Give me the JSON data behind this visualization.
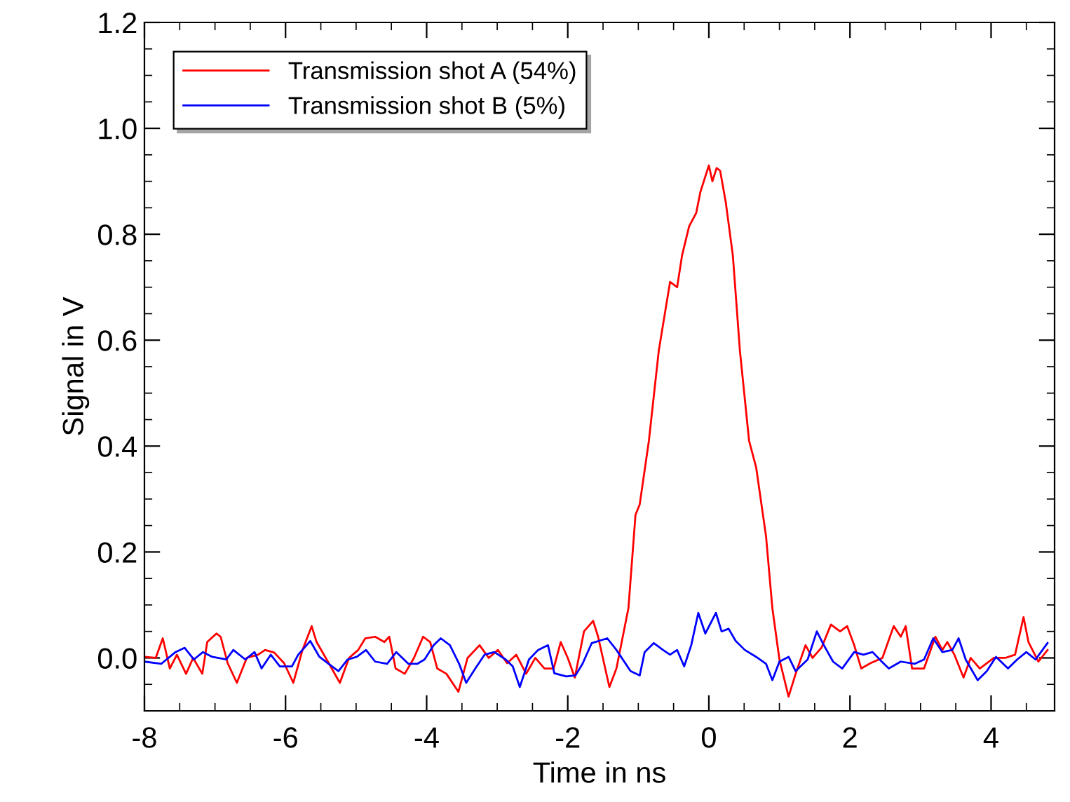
{
  "chart_data": {
    "type": "line",
    "xlabel": "Time in ns",
    "ylabel": "Signal in V",
    "xlim": [
      -8,
      4.9
    ],
    "ylim": [
      -0.1,
      1.2
    ],
    "xticks": [
      -8,
      {
        "value": -7.5,
        "label": null
      },
      {
        "value": -7,
        "label": null
      },
      {
        "value": -6.5,
        "label": null
      },
      -6,
      {
        "value": -5.5,
        "label": null
      },
      {
        "value": -5,
        "label": null
      },
      {
        "value": -4.5,
        "label": null
      },
      -4,
      {
        "value": -3.5,
        "label": null
      },
      {
        "value": -3,
        "label": null
      },
      {
        "value": -2.5,
        "label": null
      },
      -2,
      {
        "value": -1.5,
        "label": null
      },
      {
        "value": -1,
        "label": null
      },
      {
        "value": -0.5,
        "label": null
      },
      0,
      {
        "value": 0.5,
        "label": null
      },
      {
        "value": 1,
        "label": null
      },
      {
        "value": 1.5,
        "label": null
      },
      2,
      {
        "value": 2.5,
        "label": null
      },
      {
        "value": 3,
        "label": null
      },
      {
        "value": 3.5,
        "label": null
      },
      4,
      {
        "value": 4.5,
        "label": null
      }
    ],
    "yticks": [
      {
        "value": -0.05,
        "label": null
      },
      {
        "value": 0,
        "label": "0.0"
      },
      {
        "value": 0.05,
        "label": null
      },
      {
        "value": 0.1,
        "label": null
      },
      {
        "value": 0.15,
        "label": null
      },
      0.2,
      {
        "value": 0.25,
        "label": null
      },
      {
        "value": 0.3,
        "label": null
      },
      {
        "value": 0.35,
        "label": null
      },
      0.4,
      {
        "value": 0.45,
        "label": null
      },
      {
        "value": 0.5,
        "label": null
      },
      {
        "value": 0.55,
        "label": null
      },
      0.6,
      {
        "value": 0.65,
        "label": null
      },
      {
        "value": 0.7,
        "label": null
      },
      {
        "value": 0.75,
        "label": null
      },
      0.8,
      {
        "value": 0.85,
        "label": null
      },
      {
        "value": 0.9,
        "label": null
      },
      {
        "value": 0.95,
        "label": null
      },
      {
        "value": 1,
        "label": "1.0"
      },
      {
        "value": 1.05,
        "label": null
      },
      {
        "value": 1.1,
        "label": null
      },
      {
        "value": 1.15,
        "label": null
      },
      1.2
    ],
    "grid": false,
    "legend": "top left",
    "marker": "none",
    "line_style": "solid",
    "series": [
      {
        "name": "Transmission shot A (54%)",
        "color": "#ff0000",
        "x": [
          -8,
          -7.84,
          -7.74,
          -7.64,
          -7.54,
          -7.41,
          -7.31,
          -7.18,
          -7.11,
          -6.98,
          -6.92,
          -6.82,
          -6.69,
          -6.55,
          -6.39,
          -6.29,
          -6.16,
          -6.02,
          -5.89,
          -5.76,
          -5.63,
          -5.56,
          -5.43,
          -5.23,
          -5.1,
          -4.97,
          -4.87,
          -4.73,
          -4.6,
          -4.53,
          -4.44,
          -4.31,
          -4.18,
          -4.05,
          -3.95,
          -3.85,
          -3.72,
          -3.55,
          -3.42,
          -3.25,
          -3.12,
          -2.99,
          -2.86,
          -2.73,
          -2.59,
          -2.46,
          -2.33,
          -2.2,
          -2.1,
          -2.0,
          -1.9,
          -1.77,
          -1.64,
          -1.57,
          -1.41,
          -1.31,
          -1.14,
          -1.04,
          -0.98,
          -0.85,
          -0.71,
          -0.55,
          -0.45,
          -0.38,
          -0.28,
          -0.18,
          -0.12,
          0,
          0.05,
          0.11,
          0.16,
          0.24,
          0.34,
          0.44,
          0.57,
          0.67,
          0.81,
          0.9,
          1.0,
          1.13,
          1.23,
          1.37,
          1.47,
          1.6,
          1.73,
          1.86,
          1.96,
          2.06,
          2.16,
          2.29,
          2.46,
          2.62,
          2.72,
          2.79,
          2.88,
          3.05,
          3.21,
          3.31,
          3.38,
          3.48,
          3.61,
          3.71,
          3.84,
          4.04,
          4.2,
          4.34,
          4.46,
          4.53,
          4.67,
          4.8
        ],
        "values": [
          0.002,
          0,
          0.037,
          -0.02,
          0.006,
          -0.03,
          0,
          -0.03,
          0.03,
          0.046,
          0.04,
          -0.01,
          -0.047,
          0,
          0.006,
          0.015,
          0.01,
          -0.01,
          -0.047,
          0.015,
          0.06,
          0.03,
          0,
          -0.047,
          0,
          0.015,
          0.037,
          0.04,
          0.03,
          0.04,
          -0.02,
          -0.03,
          0,
          0.04,
          0.03,
          -0.02,
          -0.03,
          -0.064,
          0,
          0.024,
          0,
          0.015,
          -0.01,
          0.006,
          -0.03,
          0,
          -0.02,
          -0.02,
          0.03,
          0,
          -0.037,
          0.05,
          0.07,
          0.04,
          -0.055,
          -0.02,
          0.094,
          0.27,
          0.29,
          0.41,
          0.58,
          0.71,
          0.7,
          0.76,
          0.815,
          0.84,
          0.88,
          0.93,
          0.9,
          0.925,
          0.92,
          0.86,
          0.76,
          0.58,
          0.41,
          0.36,
          0.23,
          0.094,
          -0.003,
          -0.073,
          -0.03,
          0.024,
          0,
          0.02,
          0.063,
          0.05,
          0.06,
          0.024,
          -0.02,
          -0.01,
          0,
          0.06,
          0.04,
          0.06,
          -0.02,
          -0.02,
          0.04,
          0.015,
          0.03,
          0.006,
          -0.037,
          0,
          -0.02,
          0,
          0,
          0.006,
          0.077,
          0.03,
          -0.007,
          0.015
        ]
      },
      {
        "name": "Transmission shot B (5%)",
        "color": "#0000ff",
        "x": [
          -8,
          -7.76,
          -7.56,
          -7.43,
          -7.3,
          -7.17,
          -7.04,
          -6.84,
          -6.74,
          -6.57,
          -6.44,
          -6.34,
          -6.21,
          -6.08,
          -5.91,
          -5.82,
          -5.65,
          -5.52,
          -5.39,
          -5.25,
          -5.12,
          -4.99,
          -4.86,
          -4.73,
          -4.56,
          -4.43,
          -4.26,
          -4.13,
          -4.03,
          -3.9,
          -3.8,
          -3.67,
          -3.54,
          -3.44,
          -3.31,
          -3.18,
          -3.04,
          -2.88,
          -2.78,
          -2.68,
          -2.55,
          -2.42,
          -2.28,
          -2.19,
          -2.02,
          -1.89,
          -1.79,
          -1.66,
          -1.44,
          -1.31,
          -1.11,
          -0.98,
          -0.91,
          -0.78,
          -0.65,
          -0.55,
          -0.45,
          -0.35,
          -0.25,
          -0.15,
          -0.05,
          0.1,
          0.18,
          0.28,
          0.38,
          0.51,
          0.67,
          0.81,
          0.9,
          1.0,
          1.13,
          1.23,
          1.4,
          1.53,
          1.63,
          1.76,
          1.89,
          2.06,
          2.19,
          2.32,
          2.45,
          2.55,
          2.72,
          2.92,
          3.05,
          3.18,
          3.31,
          3.45,
          3.54,
          3.64,
          3.81,
          3.94,
          4.07,
          4.24,
          4.37,
          4.5,
          4.63,
          4.8
        ],
        "values": [
          -0.007,
          -0.011,
          0.011,
          0.019,
          -0.003,
          0.011,
          0.002,
          -0.003,
          0.015,
          -0.003,
          0.011,
          -0.02,
          0.006,
          -0.016,
          -0.016,
          0.006,
          0.032,
          0.002,
          -0.011,
          -0.025,
          -0.003,
          0.002,
          0.015,
          -0.007,
          -0.011,
          0.011,
          -0.011,
          -0.011,
          -0.003,
          0.024,
          0.037,
          0.024,
          -0.011,
          -0.047,
          -0.02,
          0.006,
          0.011,
          -0.003,
          -0.016,
          -0.055,
          -0.003,
          0.015,
          0.024,
          -0.029,
          -0.035,
          -0.033,
          -0.011,
          0.028,
          0.037,
          0.015,
          -0.025,
          -0.033,
          0.011,
          0.028,
          0.015,
          0.006,
          0.015,
          -0.016,
          0.024,
          0.085,
          0.046,
          0.085,
          0.05,
          0.055,
          0.032,
          0.015,
          0.002,
          -0.011,
          -0.042,
          -0.007,
          0.002,
          -0.025,
          -0.003,
          0.05,
          0.024,
          -0.007,
          -0.02,
          0.011,
          0.006,
          0.011,
          -0.007,
          -0.02,
          -0.007,
          -0.011,
          -0.003,
          0.037,
          0.011,
          0.015,
          0.037,
          -0.003,
          -0.042,
          -0.025,
          0.002,
          -0.02,
          -0.003,
          0.011,
          -0.003,
          0.028
        ]
      }
    ]
  }
}
